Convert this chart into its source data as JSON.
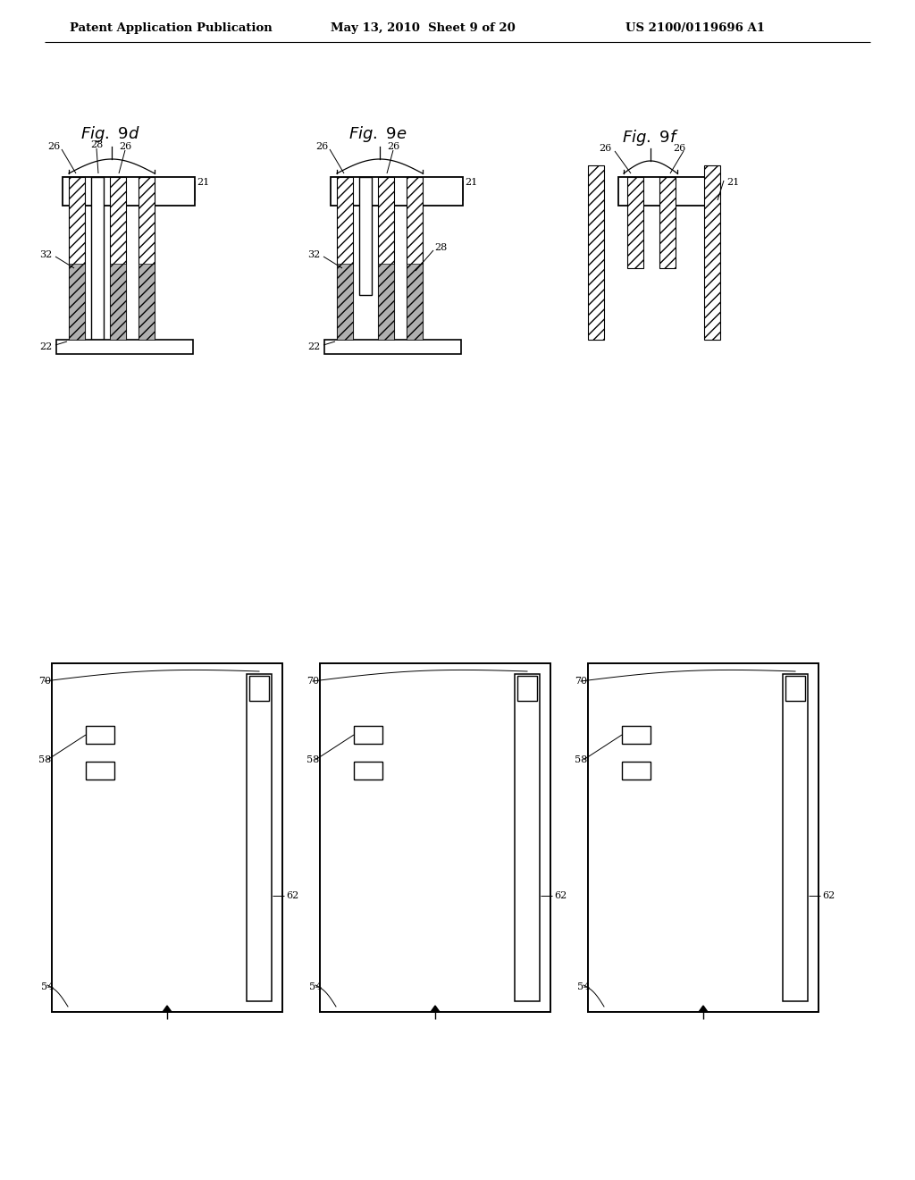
{
  "header_left": "Patent Application Publication",
  "header_mid": "May 13, 2010  Sheet 9 of 20",
  "header_right": "US 2100/0119696 A1",
  "background": "#ffffff"
}
